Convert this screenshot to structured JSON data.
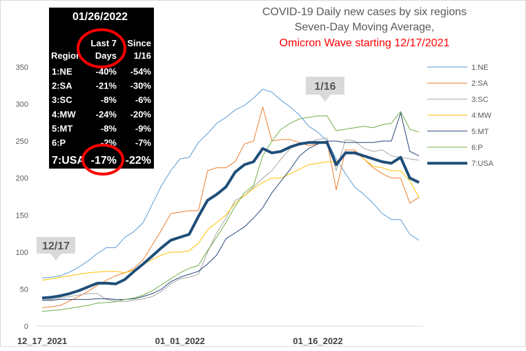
{
  "chart_data": {
    "type": "line",
    "title": [
      "COVID-19 Daily new cases by six regions",
      "Seven-Day Moving Average,",
      "Omicron Wave starting 12/17/2021"
    ],
    "xlabel": "",
    "ylabel": "",
    "ylim": [
      0,
      350
    ],
    "y_ticks": [
      0,
      50,
      100,
      150,
      200,
      250,
      300,
      350
    ],
    "x_tick_labels": [
      "12_17_2021",
      "01_01_2022",
      "01_16_2022"
    ],
    "x_tick_index": [
      0,
      15,
      30
    ],
    "grid": false,
    "legend_position": "right",
    "series": [
      {
        "name": "1:NE",
        "color": "#5b9bd5",
        "width": 1,
        "values": [
          65,
          66,
          68,
          73,
          80,
          88,
          98,
          106,
          106,
          120,
          128,
          140,
          165,
          190,
          210,
          226,
          228,
          248,
          260,
          274,
          282,
          292,
          298,
          308,
          320,
          316,
          305,
          296,
          285,
          270,
          262,
          250,
          226,
          206,
          188,
          178,
          166,
          152,
          144,
          144,
          124,
          116
        ]
      },
      {
        "name": "2:SA",
        "color": "#ed7d31",
        "width": 1,
        "values": [
          25,
          26,
          28,
          34,
          40,
          47,
          55,
          62,
          68,
          72,
          78,
          90,
          110,
          130,
          152,
          154,
          156,
          156,
          210,
          214,
          214,
          222,
          246,
          250,
          296,
          250,
          252,
          252,
          248,
          244,
          246,
          250,
          184,
          238,
          238,
          226,
          214,
          206,
          200,
          200,
          166,
          174
        ]
      },
      {
        "name": "3:SC",
        "color": "#a5a5a5",
        "width": 1,
        "values": [
          35,
          36,
          38,
          40,
          42,
          44,
          44,
          36,
          34,
          33,
          35,
          37,
          40,
          47,
          57,
          64,
          66,
          70,
          100,
          126,
          146,
          170,
          176,
          188,
          200,
          210,
          226,
          240,
          248,
          248,
          252,
          254,
          210,
          252,
          250,
          240,
          236,
          238,
          230,
          228,
          226,
          224
        ]
      },
      {
        "name": "4:MW",
        "color": "#ffc000",
        "width": 1,
        "values": [
          62,
          64,
          66,
          68,
          70,
          72,
          73,
          74,
          74,
          72,
          76,
          84,
          90,
          96,
          100,
          100,
          102,
          112,
          130,
          140,
          150,
          166,
          176,
          186,
          194,
          200,
          200,
          206,
          212,
          218,
          220,
          222,
          222,
          232,
          236,
          226,
          216,
          214,
          210,
          210,
          196,
          174
        ]
      },
      {
        "name": "5:MT",
        "color": "#264478",
        "width": 1,
        "values": [
          35,
          35,
          36,
          36,
          36,
          36,
          37,
          37,
          36,
          36,
          37,
          40,
          44,
          50,
          60,
          66,
          70,
          74,
          84,
          96,
          118,
          126,
          134,
          146,
          160,
          180,
          196,
          212,
          230,
          240,
          246,
          250,
          250,
          248,
          248,
          248,
          248,
          250,
          250,
          288,
          236,
          230
        ]
      },
      {
        "name": "6:P",
        "color": "#70ad47",
        "width": 1,
        "values": [
          20,
          21,
          22,
          24,
          26,
          28,
          31,
          32,
          33,
          36,
          38,
          42,
          48,
          56,
          64,
          72,
          78,
          82,
          102,
          120,
          140,
          162,
          180,
          190,
          230,
          250,
          266,
          274,
          280,
          282,
          284,
          284,
          264,
          266,
          268,
          270,
          268,
          272,
          274,
          290,
          266,
          262
        ]
      },
      {
        "name": "7:USA",
        "color": "#1f4e79",
        "width": 4,
        "values": [
          38,
          39,
          41,
          44,
          48,
          53,
          58,
          58,
          57,
          63,
          74,
          84,
          95,
          106,
          116,
          120,
          124,
          148,
          170,
          178,
          188,
          208,
          218,
          222,
          240,
          234,
          236,
          242,
          246,
          248,
          248,
          248,
          218,
          234,
          234,
          230,
          226,
          222,
          220,
          228,
          200,
          194
        ]
      }
    ]
  },
  "table": {
    "date": "01/26/2022",
    "col_last7": [
      "Last 7",
      "Days"
    ],
    "col_since": [
      "Since",
      "1/16"
    ],
    "col_region": "Region",
    "rows": [
      {
        "region": "1:NE",
        "last7": "-40%",
        "since": "-54%"
      },
      {
        "region": "2:SA",
        "last7": "-21%",
        "since": "-30%"
      },
      {
        "region": "3:SC",
        "last7": "-8%",
        "since": "-6%"
      },
      {
        "region": "4:MW",
        "last7": "-24%",
        "since": "-20%"
      },
      {
        "region": "5:MT",
        "last7": "-8%",
        "since": "-9%"
      },
      {
        "region": "6:P",
        "last7": "-2%",
        "since": "-7%"
      },
      {
        "region": "7:USA",
        "last7": "-17%",
        "since": "-22%"
      }
    ]
  },
  "callouts": [
    {
      "label": "12/17",
      "index": 2
    },
    {
      "label": "1/16",
      "index": 30
    }
  ],
  "highlight_color": "#ff0000"
}
